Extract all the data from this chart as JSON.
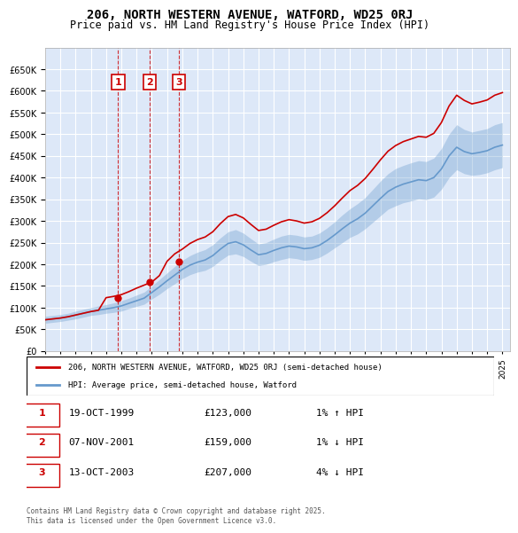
{
  "title": "206, NORTH WESTERN AVENUE, WATFORD, WD25 0RJ",
  "subtitle": "Price paid vs. HM Land Registry's House Price Index (HPI)",
  "ylabel": "",
  "ylim": [
    0,
    700000
  ],
  "yticks": [
    0,
    50000,
    100000,
    150000,
    200000,
    250000,
    300000,
    350000,
    400000,
    450000,
    500000,
    550000,
    600000,
    650000
  ],
  "xlim_start": 1995.0,
  "xlim_end": 2025.5,
  "background_color": "#dde8f8",
  "plot_bg": "#dde8f8",
  "grid_color": "#ffffff",
  "sale_dates": [
    1999.79,
    2001.85,
    2003.79
  ],
  "sale_prices": [
    123000,
    159000,
    207000
  ],
  "sale_labels": [
    "1",
    "2",
    "3"
  ],
  "legend_line1": "206, NORTH WESTERN AVENUE, WATFORD, WD25 0RJ (semi-detached house)",
  "legend_line2": "HPI: Average price, semi-detached house, Watford",
  "table_entries": [
    {
      "label": "1",
      "date": "19-OCT-1999",
      "price": "£123,000",
      "pct": "1%",
      "dir": "↑",
      "ref": "HPI"
    },
    {
      "label": "2",
      "date": "07-NOV-2001",
      "price": "£159,000",
      "pct": "1%",
      "dir": "↓",
      "ref": "HPI"
    },
    {
      "label": "3",
      "date": "13-OCT-2003",
      "price": "£207,000",
      "pct": "4%",
      "dir": "↓",
      "ref": "HPI"
    }
  ],
  "footer": "Contains HM Land Registry data © Crown copyright and database right 2025.\nThis data is licensed under the Open Government Licence v3.0.",
  "hpi_color": "#6699cc",
  "sale_color": "#cc0000",
  "hpi_years": [
    1995,
    1995.5,
    1996,
    1996.5,
    1997,
    1997.5,
    1998,
    1998.5,
    1999,
    1999.5,
    2000,
    2000.5,
    2001,
    2001.5,
    2002,
    2002.5,
    2003,
    2003.5,
    2004,
    2004.5,
    2005,
    2005.5,
    2006,
    2006.5,
    2007,
    2007.5,
    2008,
    2008.5,
    2009,
    2009.5,
    2010,
    2010.5,
    2011,
    2011.5,
    2012,
    2012.5,
    2013,
    2013.5,
    2014,
    2014.5,
    2015,
    2015.5,
    2016,
    2016.5,
    2017,
    2017.5,
    2018,
    2018.5,
    2019,
    2019.5,
    2020,
    2020.5,
    2021,
    2021.5,
    2022,
    2022.5,
    2023,
    2023.5,
    2024,
    2024.5,
    2025
  ],
  "hpi_values": [
    72000,
    74000,
    76000,
    79000,
    83000,
    87000,
    91000,
    94000,
    97000,
    100000,
    104000,
    110000,
    116000,
    122000,
    135000,
    148000,
    162000,
    175000,
    188000,
    198000,
    205000,
    210000,
    220000,
    235000,
    248000,
    252000,
    245000,
    233000,
    222000,
    225000,
    232000,
    238000,
    242000,
    240000,
    236000,
    238000,
    244000,
    255000,
    268000,
    282000,
    295000,
    305000,
    318000,
    335000,
    352000,
    368000,
    378000,
    385000,
    390000,
    395000,
    393000,
    400000,
    420000,
    450000,
    470000,
    460000,
    455000,
    458000,
    462000,
    470000,
    475000
  ],
  "hpi_upper": [
    80000,
    82000,
    84000,
    87000,
    92000,
    96000,
    100000,
    104000,
    107000,
    111000,
    116000,
    122000,
    129000,
    136000,
    150000,
    165000,
    180000,
    195000,
    209000,
    220000,
    228000,
    234000,
    245000,
    261000,
    275000,
    280000,
    272000,
    259000,
    247000,
    250000,
    258000,
    265000,
    269000,
    267000,
    263000,
    265000,
    272000,
    284000,
    298000,
    314000,
    328000,
    340000,
    354000,
    373000,
    392000,
    409000,
    421000,
    428000,
    434000,
    439000,
    437000,
    445000,
    467000,
    500000,
    522000,
    511000,
    505000,
    509000,
    513000,
    522000,
    527000
  ],
  "hpi_lower": [
    64000,
    66000,
    68000,
    71000,
    74000,
    78000,
    82000,
    84000,
    87000,
    89000,
    92000,
    98000,
    103000,
    108000,
    120000,
    131000,
    144000,
    155000,
    167000,
    176000,
    182000,
    186000,
    195000,
    209000,
    221000,
    224000,
    218000,
    207000,
    197000,
    200000,
    206000,
    211000,
    215000,
    213000,
    209000,
    211000,
    216000,
    226000,
    238000,
    250000,
    262000,
    270000,
    282000,
    297000,
    312000,
    327000,
    335000,
    342000,
    346000,
    351000,
    349000,
    355000,
    373000,
    400000,
    418000,
    409000,
    405000,
    407000,
    411000,
    418000,
    423000
  ],
  "price_line_years": [
    1995,
    1995.5,
    1996,
    1996.5,
    1997,
    1997.5,
    1998,
    1998.5,
    1999,
    1999.5,
    2000,
    2000.5,
    2001,
    2001.5,
    2002,
    2002.5,
    2003,
    2003.5,
    2004,
    2004.5,
    2005,
    2005.5,
    2006,
    2006.5,
    2007,
    2007.5,
    2008,
    2008.5,
    2009,
    2009.5,
    2010,
    2010.5,
    2011,
    2011.5,
    2012,
    2012.5,
    2013,
    2013.5,
    2014,
    2014.5,
    2015,
    2015.5,
    2016,
    2016.5,
    2017,
    2017.5,
    2018,
    2018.5,
    2019,
    2019.5,
    2020,
    2020.5,
    2021,
    2021.5,
    2022,
    2022.5,
    2023,
    2023.5,
    2024,
    2024.5,
    2025
  ],
  "price_line_values": [
    72000,
    74000,
    76000,
    79000,
    83000,
    87000,
    91000,
    94000,
    123000,
    126000,
    130000,
    137000,
    145000,
    152000,
    159000,
    174000,
    207000,
    224000,
    235000,
    248000,
    257000,
    263000,
    275000,
    294000,
    310000,
    315000,
    307000,
    292000,
    278000,
    281000,
    290000,
    298000,
    303000,
    300000,
    295000,
    298000,
    306000,
    319000,
    335000,
    353000,
    370000,
    382000,
    398000,
    419000,
    441000,
    461000,
    474000,
    483000,
    489000,
    495000,
    493000,
    502000,
    527000,
    565000,
    590000,
    578000,
    570000,
    574000,
    579000,
    590000,
    596000
  ]
}
